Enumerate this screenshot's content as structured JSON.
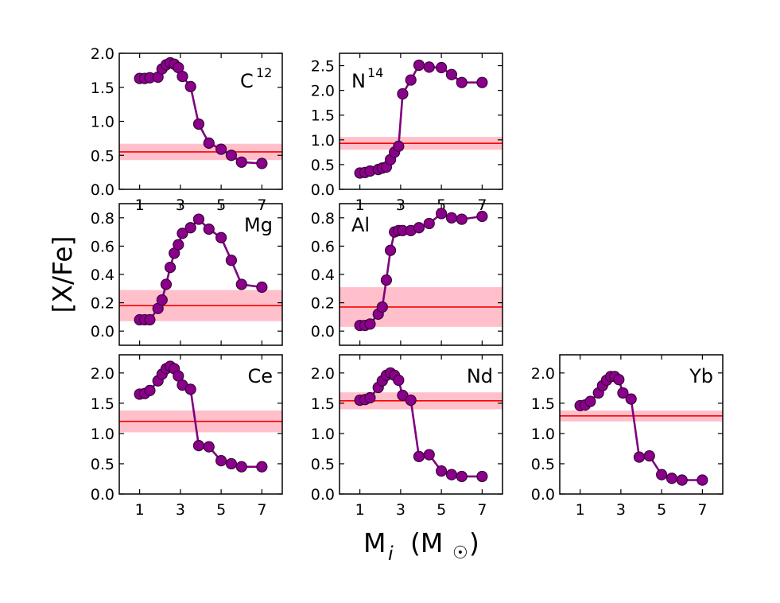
{
  "figure": {
    "ylabel": "[X/Fe]",
    "xlabel_main": "M",
    "xlabel_sub": "i",
    "xlabel_unit_open": "(M",
    "xlabel_unit_symbol": "☉",
    "xlabel_unit_close": ")",
    "line_color": "#800080",
    "marker_color": "#8b008b",
    "ref_line_color": "#ff0000",
    "ref_band_color": "#ffc0cb"
  },
  "chart_data": [
    {
      "type": "line",
      "panel": "C12",
      "label": "C",
      "label_sup": "12",
      "xlim": [
        0,
        8
      ],
      "xticks": [
        "1",
        "3",
        "5",
        "7"
      ],
      "xtick_values": [
        1,
        3,
        5,
        7
      ],
      "ylim": [
        0,
        2.0
      ],
      "yticks": [
        "0.0",
        "0.5",
        "1.0",
        "1.5",
        "2.0"
      ],
      "ytick_values": [
        0,
        0.5,
        1.0,
        1.5,
        2.0
      ],
      "ref": 0.55,
      "ref_band": [
        0.43,
        0.67
      ],
      "x": [
        1.0,
        1.25,
        1.5,
        1.9,
        2.1,
        2.3,
        2.5,
        2.7,
        2.9,
        3.1,
        3.5,
        3.9,
        4.4,
        5.0,
        5.5,
        6.0,
        7.0
      ],
      "y": [
        1.63,
        1.63,
        1.64,
        1.65,
        1.77,
        1.83,
        1.86,
        1.84,
        1.79,
        1.66,
        1.51,
        0.96,
        0.68,
        0.59,
        0.5,
        0.4,
        0.38
      ]
    },
    {
      "type": "line",
      "panel": "N14",
      "label": "N",
      "label_sup": "14",
      "xlim": [
        0,
        8
      ],
      "xticks": [
        "1",
        "3",
        "5",
        "7"
      ],
      "xtick_values": [
        1,
        3,
        5,
        7
      ],
      "ylim": [
        0,
        2.75
      ],
      "yticks": [
        "0.0",
        "0.5",
        "1.0",
        "1.5",
        "2.0",
        "2.5"
      ],
      "ytick_values": [
        0,
        0.5,
        1.0,
        1.5,
        2.0,
        2.5
      ],
      "ref": 0.93,
      "ref_band": [
        0.8,
        1.06
      ],
      "x": [
        1.0,
        1.25,
        1.5,
        1.9,
        2.1,
        2.3,
        2.5,
        2.7,
        2.9,
        3.1,
        3.5,
        3.9,
        4.4,
        5.0,
        5.5,
        6.0,
        7.0
      ],
      "y": [
        0.33,
        0.34,
        0.37,
        0.4,
        0.43,
        0.45,
        0.6,
        0.75,
        0.87,
        1.93,
        2.21,
        2.51,
        2.47,
        2.46,
        2.32,
        2.16,
        2.16
      ]
    },
    {
      "type": "line",
      "panel": "Mg",
      "label": "Mg",
      "label_sup": "",
      "xlim": [
        0,
        8
      ],
      "xticks": [],
      "xtick_values": [],
      "ylim": [
        -0.1,
        0.9
      ],
      "yticks": [
        "0.0",
        "0.2",
        "0.4",
        "0.6",
        "0.8"
      ],
      "ytick_values": [
        0,
        0.2,
        0.4,
        0.6,
        0.8
      ],
      "ref": 0.18,
      "ref_band": [
        0.07,
        0.29
      ],
      "x": [
        1.0,
        1.25,
        1.5,
        1.9,
        2.1,
        2.3,
        2.5,
        2.7,
        2.9,
        3.1,
        3.5,
        3.9,
        4.4,
        5.0,
        5.5,
        6.0,
        7.0
      ],
      "y": [
        0.08,
        0.08,
        0.08,
        0.16,
        0.22,
        0.33,
        0.45,
        0.55,
        0.61,
        0.69,
        0.73,
        0.79,
        0.72,
        0.66,
        0.5,
        0.33,
        0.31
      ]
    },
    {
      "type": "line",
      "panel": "Al",
      "label": "Al",
      "label_sup": "",
      "xlim": [
        0,
        8
      ],
      "xticks": [],
      "xtick_values": [],
      "ylim": [
        -0.1,
        0.9
      ],
      "yticks": [
        "0.0",
        "0.2",
        "0.4",
        "0.6",
        "0.8"
      ],
      "ytick_values": [
        0,
        0.2,
        0.4,
        0.6,
        0.8
      ],
      "ref": 0.17,
      "ref_band": [
        0.03,
        0.31
      ],
      "x": [
        1.0,
        1.25,
        1.5,
        1.9,
        2.1,
        2.3,
        2.5,
        2.7,
        2.9,
        3.1,
        3.5,
        3.9,
        4.4,
        5.0,
        5.5,
        6.0,
        7.0
      ],
      "y": [
        0.04,
        0.04,
        0.05,
        0.12,
        0.17,
        0.36,
        0.57,
        0.7,
        0.71,
        0.71,
        0.71,
        0.73,
        0.76,
        0.83,
        0.8,
        0.79,
        0.81
      ]
    },
    {
      "type": "line",
      "panel": "Ce",
      "label": "Ce",
      "label_sup": "",
      "xlim": [
        0,
        8
      ],
      "xticks": [
        "1",
        "3",
        "5",
        "7"
      ],
      "xtick_values": [
        1,
        3,
        5,
        7
      ],
      "ylim": [
        0,
        2.3
      ],
      "yticks": [
        "0.0",
        "0.5",
        "1.0",
        "1.5",
        "2.0"
      ],
      "ytick_values": [
        0,
        0.5,
        1.0,
        1.5,
        2.0
      ],
      "ref": 1.2,
      "ref_band": [
        1.02,
        1.38
      ],
      "x": [
        1.0,
        1.25,
        1.5,
        1.9,
        2.1,
        2.3,
        2.5,
        2.7,
        2.9,
        3.1,
        3.5,
        3.9,
        4.4,
        5.0,
        5.5,
        6.0,
        7.0
      ],
      "y": [
        1.65,
        1.66,
        1.71,
        1.87,
        1.98,
        2.07,
        2.11,
        2.07,
        1.95,
        1.8,
        1.73,
        0.8,
        0.78,
        0.55,
        0.5,
        0.45,
        0.45
      ]
    },
    {
      "type": "line",
      "panel": "Nd",
      "label": "Nd",
      "label_sup": "",
      "xlim": [
        0,
        8
      ],
      "xticks": [
        "1",
        "3",
        "5",
        "7"
      ],
      "xtick_values": [
        1,
        3,
        5,
        7
      ],
      "ylim": [
        0,
        2.3
      ],
      "yticks": [
        "0.0",
        "0.5",
        "1.0",
        "1.5",
        "2.0"
      ],
      "ytick_values": [
        0,
        0.5,
        1.0,
        1.5,
        2.0
      ],
      "ref": 1.54,
      "ref_band": [
        1.4,
        1.68
      ],
      "x": [
        1.0,
        1.25,
        1.5,
        1.9,
        2.1,
        2.3,
        2.5,
        2.7,
        2.9,
        3.1,
        3.5,
        3.9,
        4.4,
        5.0,
        5.5,
        6.0,
        7.0
      ],
      "y": [
        1.55,
        1.56,
        1.59,
        1.76,
        1.87,
        1.96,
        2.0,
        1.96,
        1.88,
        1.63,
        1.55,
        0.62,
        0.65,
        0.38,
        0.32,
        0.29,
        0.29
      ]
    },
    {
      "type": "line",
      "panel": "Yb",
      "label": "Yb",
      "label_sup": "",
      "xlim": [
        0,
        8
      ],
      "xticks": [
        "1",
        "3",
        "5",
        "7"
      ],
      "xtick_values": [
        1,
        3,
        5,
        7
      ],
      "ylim": [
        0,
        2.3
      ],
      "yticks": [
        "0.0",
        "0.5",
        "1.0",
        "1.5",
        "2.0"
      ],
      "ytick_values": [
        0,
        0.5,
        1.0,
        1.5,
        2.0
      ],
      "ref": 1.29,
      "ref_band": [
        1.2,
        1.38
      ],
      "x": [
        1.0,
        1.25,
        1.5,
        1.9,
        2.1,
        2.3,
        2.5,
        2.7,
        2.9,
        3.1,
        3.5,
        3.9,
        4.4,
        5.0,
        5.5,
        6.0,
        7.0
      ],
      "y": [
        1.46,
        1.47,
        1.53,
        1.67,
        1.79,
        1.88,
        1.94,
        1.94,
        1.89,
        1.67,
        1.57,
        0.61,
        0.63,
        0.32,
        0.26,
        0.23,
        0.23
      ]
    }
  ]
}
